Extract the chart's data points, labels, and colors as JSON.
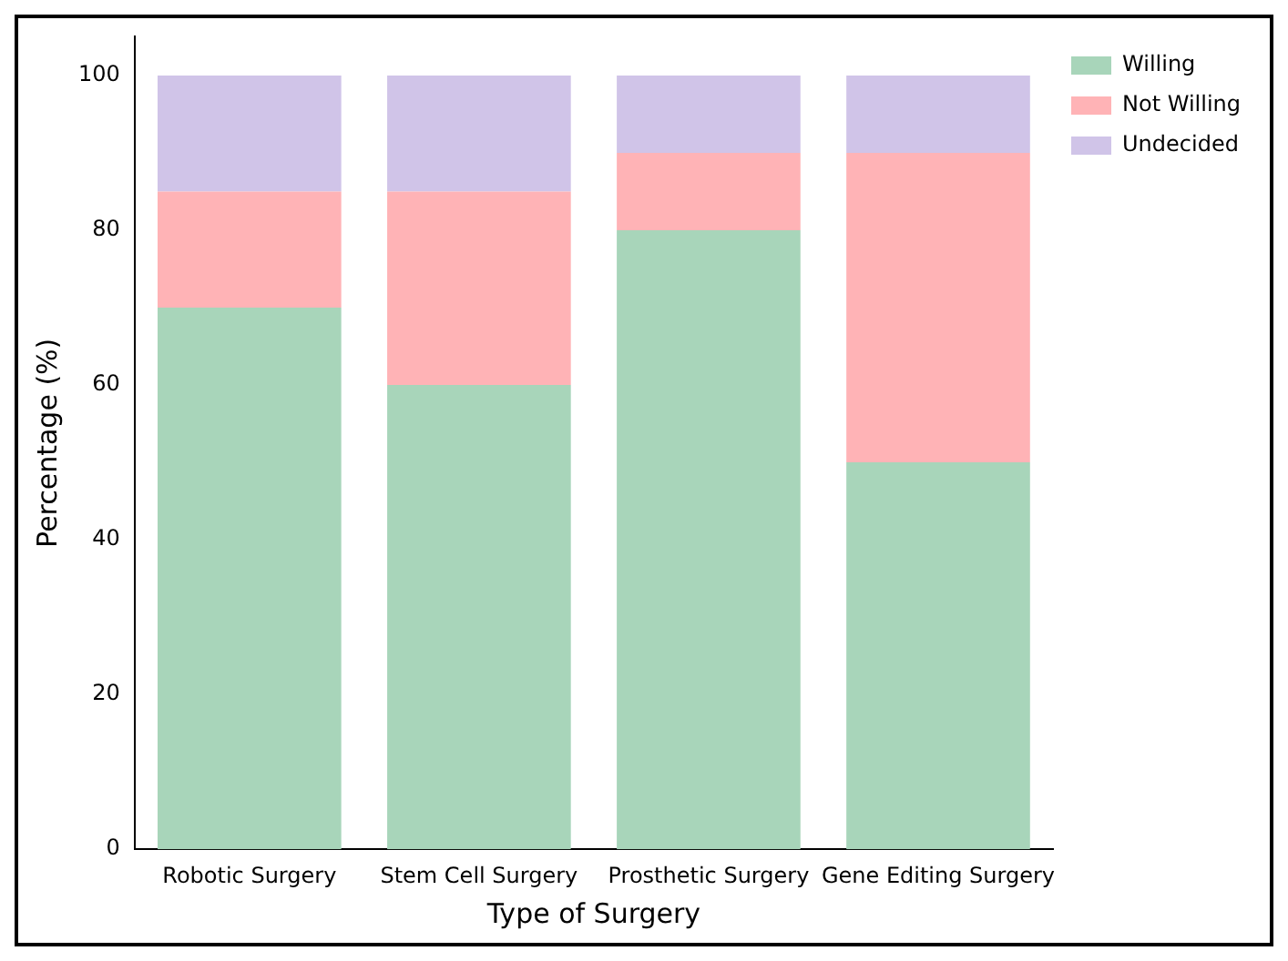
{
  "chart_data": {
    "type": "bar",
    "stacked": true,
    "xlabel": "Type of Surgery",
    "ylabel": "Percentage (%)",
    "categories": [
      "Robotic Surgery",
      "Stem Cell Surgery",
      "Prosthetic Surgery",
      "Gene Editing Surgery"
    ],
    "series": [
      {
        "name": "Willing",
        "color": "#a8d5ba",
        "values": [
          70,
          60,
          80,
          50
        ]
      },
      {
        "name": "Not Willing",
        "color": "#ffb3b6",
        "values": [
          15,
          25,
          10,
          40
        ]
      },
      {
        "name": "Undecided",
        "color": "#d0c4e8",
        "values": [
          15,
          15,
          10,
          10
        ]
      }
    ],
    "ylim": [
      0,
      105
    ],
    "yticks": [
      0,
      20,
      40,
      60,
      80,
      100
    ],
    "grid": false,
    "legend": "top right"
  }
}
